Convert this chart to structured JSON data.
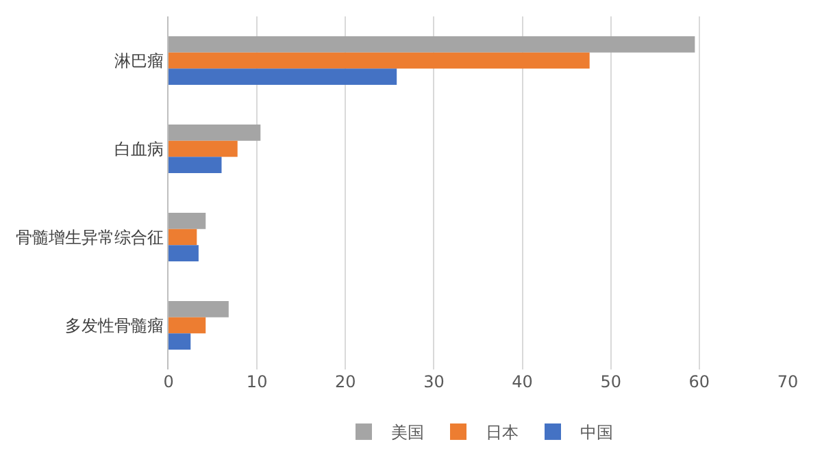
{
  "chart_data": {
    "type": "bar",
    "orientation": "horizontal",
    "categories": [
      "淋巴瘤",
      "白血病",
      "骨髓增生异常综合征",
      "多发性骨髓瘤"
    ],
    "series": [
      {
        "name": "美国",
        "color": "#a5a5a5",
        "values": [
          59.5,
          10.4,
          4.2,
          6.8
        ]
      },
      {
        "name": "日本",
        "color": "#ed7d31",
        "values": [
          47.6,
          7.8,
          3.2,
          4.2
        ]
      },
      {
        "name": "中国",
        "color": "#4472c4",
        "values": [
          25.8,
          6.0,
          3.4,
          2.5
        ]
      }
    ],
    "xlim": [
      0,
      70
    ],
    "xticks": [
      0,
      10,
      20,
      30,
      40,
      50,
      60,
      70
    ],
    "grid": "x",
    "legend": "bottom"
  }
}
